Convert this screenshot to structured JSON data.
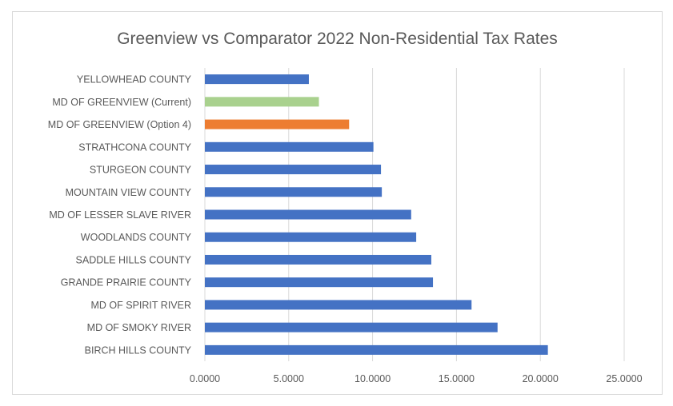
{
  "chart_data": {
    "type": "bar",
    "orientation": "horizontal",
    "title": "Greenview vs Comparator 2022 Non-Residential Tax Rates",
    "categories": [
      "YELLOWHEAD COUNTY",
      "MD OF GREENVIEW (Current)",
      "MD OF GREENVIEW (Option 4)",
      "STRATHCONA COUNTY",
      "STURGEON COUNTY",
      "MOUNTAIN VIEW COUNTY",
      "MD OF LESSER SLAVE RIVER",
      "WOODLANDS COUNTY",
      "SADDLE HILLS COUNTY",
      "GRANDE PRAIRIE COUNTY",
      "MD OF SPIRIT RIVER",
      "MD OF SMOKY RIVER",
      "BIRCH HILLS COUNTY"
    ],
    "values": [
      6.2,
      6.8,
      8.6,
      10.05,
      10.5,
      10.55,
      12.3,
      12.6,
      13.5,
      13.6,
      15.9,
      17.45,
      20.45
    ],
    "colors": [
      "#4472c4",
      "#a9d18e",
      "#ed7d31",
      "#4472c4",
      "#4472c4",
      "#4472c4",
      "#4472c4",
      "#4472c4",
      "#4472c4",
      "#4472c4",
      "#4472c4",
      "#4472c4",
      "#4472c4"
    ],
    "xlim": [
      0,
      25
    ],
    "x_ticks": [
      "0.0000",
      "5.0000",
      "10.0000",
      "15.0000",
      "20.0000",
      "25.0000"
    ],
    "x_tick_values": [
      0,
      5,
      10,
      15,
      20,
      25
    ],
    "grid": true,
    "legend": "none",
    "gridline_color": "#d9d9d9"
  }
}
